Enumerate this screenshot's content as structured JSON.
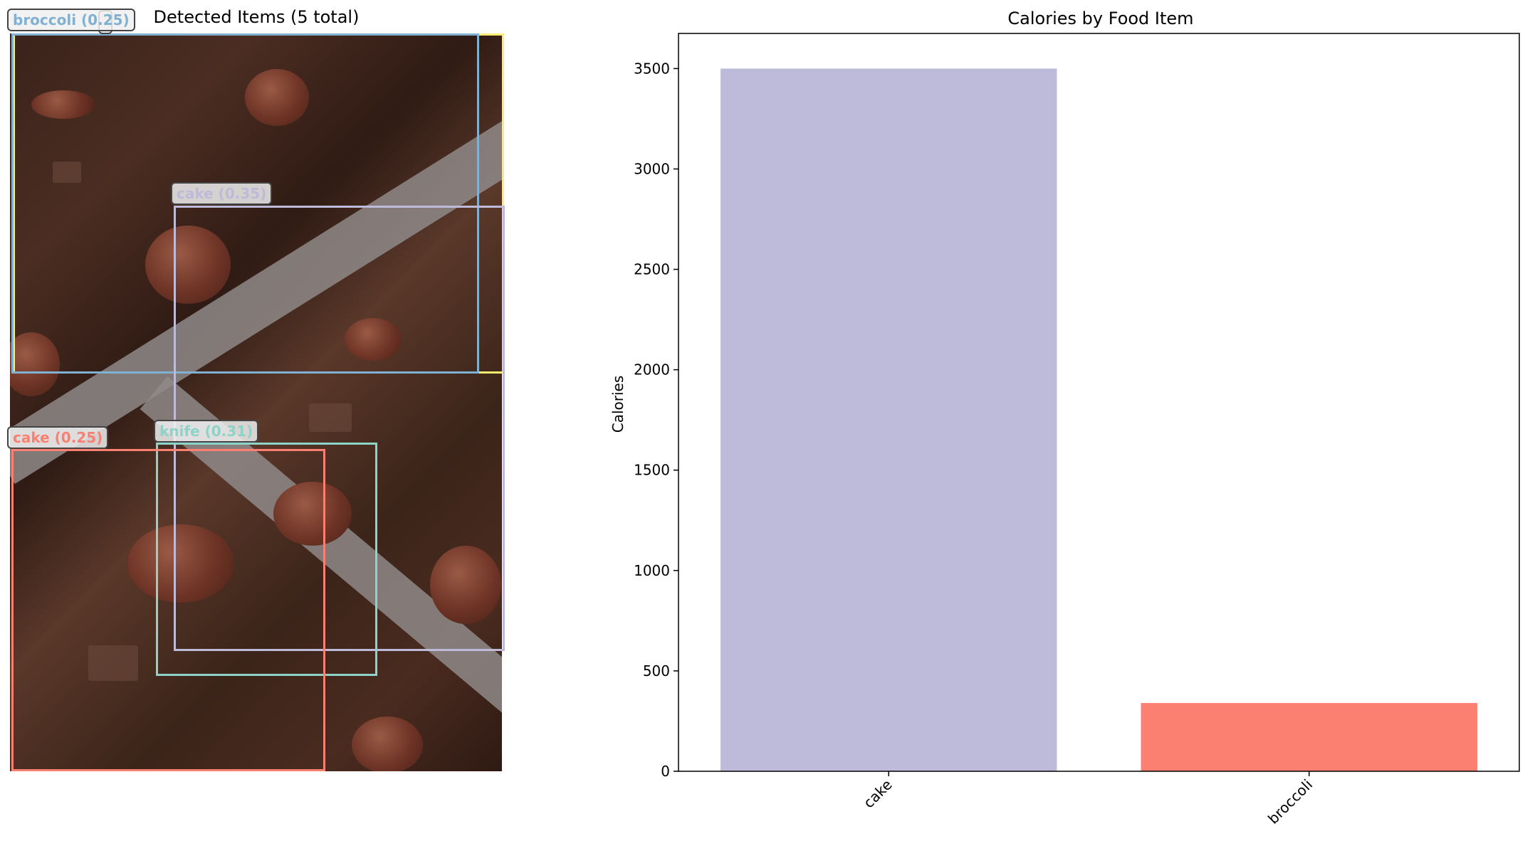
{
  "left_panel": {
    "title": "Detected Items (5 total)",
    "detections": [
      {
        "label": "broccoli (0.25)",
        "color": "#80b1d3"
      },
      {
        "label": "cake (0.35)",
        "color": "#bebada"
      },
      {
        "label": "knife (0.31)",
        "color": "#8dd3c7"
      },
      {
        "label": "cake (0.25)",
        "color": "#fb8072"
      },
      {
        "label": "",
        "color": "#ffed6f"
      }
    ]
  },
  "chart_data": {
    "type": "bar",
    "title": "Calories by Food Item",
    "xlabel": "",
    "ylabel": "Calories",
    "categories": [
      "cake",
      "broccoli"
    ],
    "values": [
      3500,
      340
    ],
    "colors": [
      "#bebada",
      "#fb8072"
    ],
    "ylim": [
      0,
      3675
    ],
    "yticks": [
      0,
      500,
      1000,
      1500,
      2000,
      2500,
      3000,
      3500
    ],
    "grid": false
  }
}
